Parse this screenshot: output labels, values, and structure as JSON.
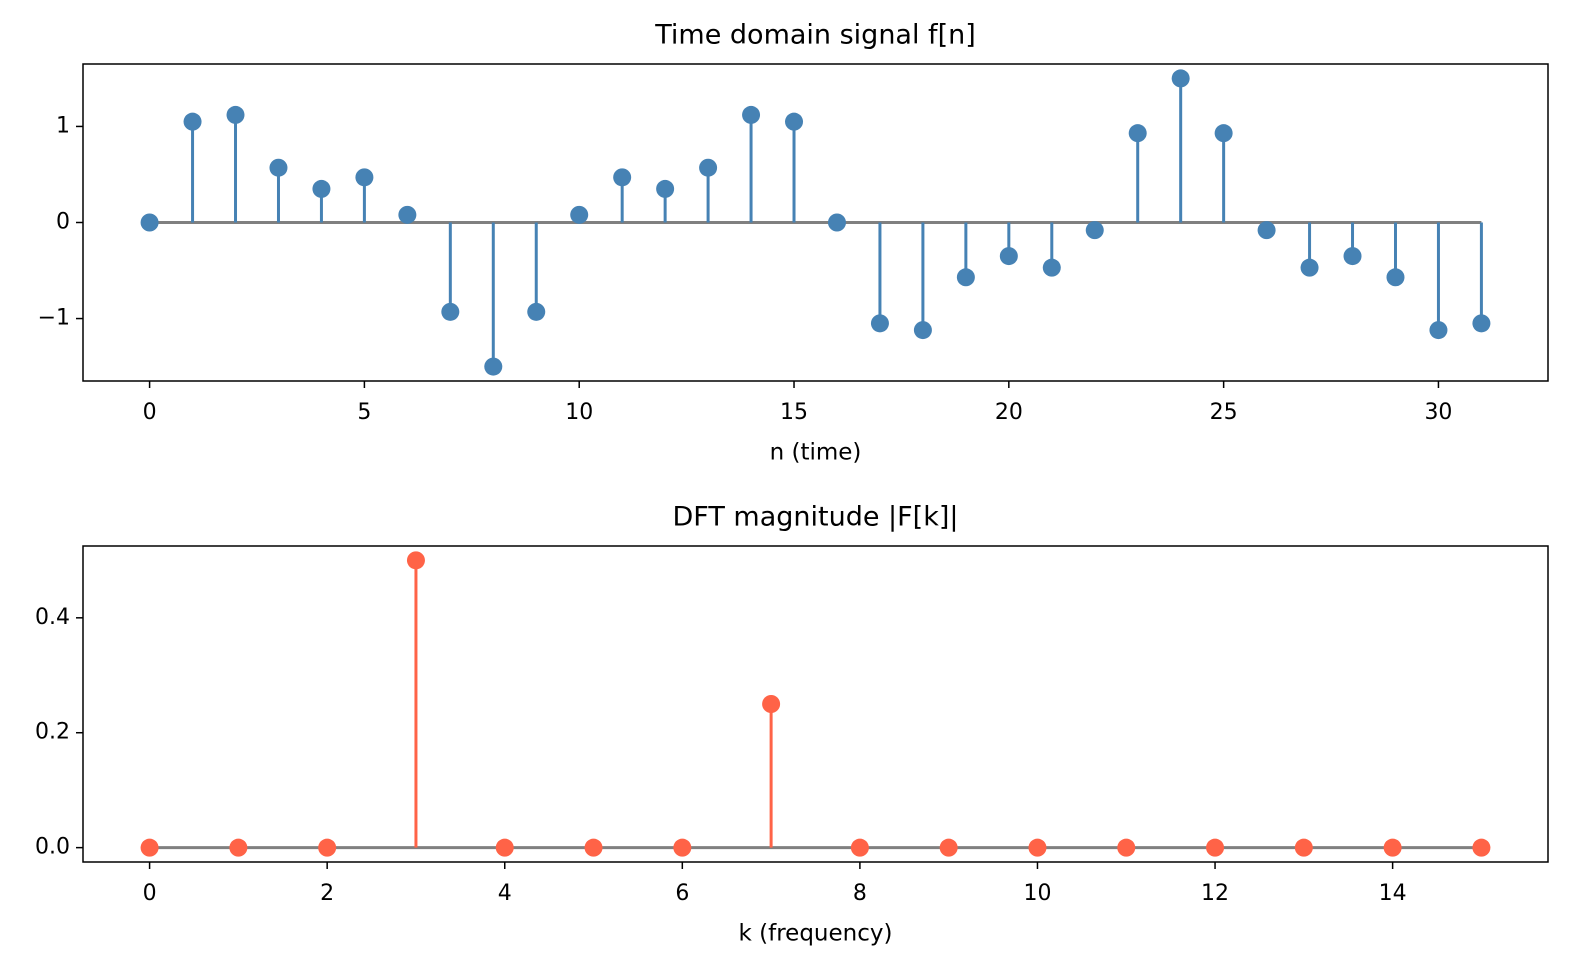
{
  "chart_data": [
    {
      "type": "stem",
      "title": "Time domain signal f[n]",
      "xlabel": "n (time)",
      "color": "#4682b4",
      "baseline_color": "#808080",
      "x": [
        0,
        1,
        2,
        3,
        4,
        5,
        6,
        7,
        8,
        9,
        10,
        11,
        12,
        13,
        14,
        15,
        16,
        17,
        18,
        19,
        20,
        21,
        22,
        23,
        24,
        25,
        26,
        27,
        28,
        29,
        30,
        31
      ],
      "values": [
        0,
        1.05,
        1.12,
        0.57,
        0.35,
        0.47,
        0.08,
        -0.93,
        -1.5,
        -0.93,
        0.08,
        0.47,
        0.35,
        0.57,
        1.12,
        1.05,
        0,
        -1.05,
        -1.12,
        -0.57,
        -0.35,
        -0.47,
        -0.08,
        0.93,
        1.5,
        0.93,
        -0.08,
        -0.47,
        -0.35,
        -0.57,
        -1.12,
        -1.05
      ],
      "xlim": [
        -1.55,
        32.55
      ],
      "ylim": [
        -1.65,
        1.65
      ],
      "xticks": [
        0,
        5,
        10,
        15,
        20,
        25,
        30
      ],
      "yticks": [
        {
          "value": -1,
          "label": "−1"
        },
        0,
        1
      ]
    },
    {
      "type": "stem",
      "title": "DFT magnitude |F[k]|",
      "xlabel": "k (frequency)",
      "color": "#ff6347",
      "baseline_color": "#808080",
      "x": [
        0,
        1,
        2,
        3,
        4,
        5,
        6,
        7,
        8,
        9,
        10,
        11,
        12,
        13,
        14,
        15
      ],
      "values": [
        0,
        0,
        0,
        0.5,
        0,
        0,
        0,
        0.25,
        0,
        0,
        0,
        0,
        0,
        0,
        0,
        0
      ],
      "xlim": [
        -0.75,
        15.75
      ],
      "ylim": [
        -0.025,
        0.525
      ],
      "xticks": [
        0,
        2,
        4,
        6,
        8,
        10,
        12,
        14
      ],
      "yticks": [
        {
          "value": 0,
          "label": "0.0"
        },
        {
          "value": 0.2,
          "label": "0.2"
        },
        {
          "value": 0.4,
          "label": "0.4"
        }
      ]
    }
  ]
}
